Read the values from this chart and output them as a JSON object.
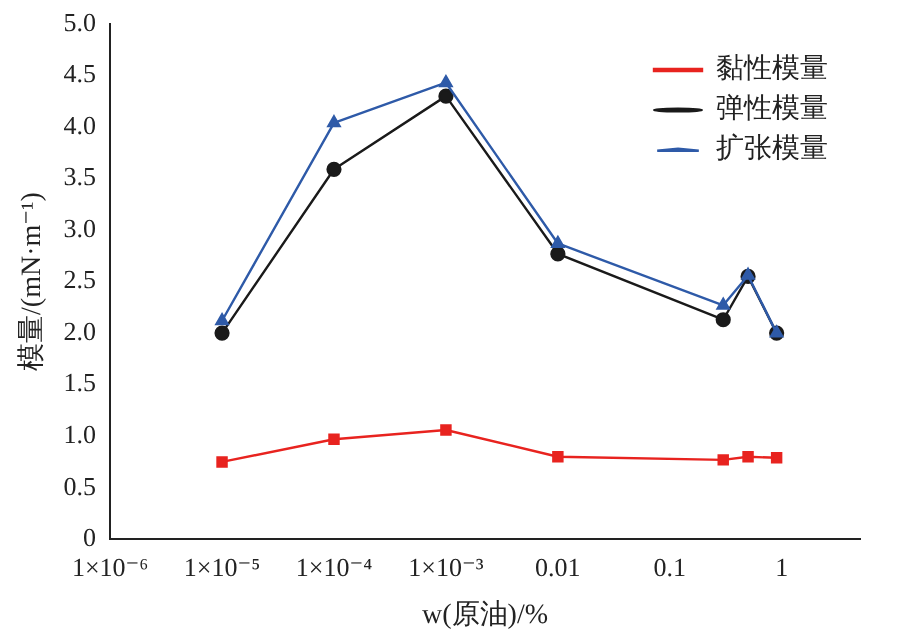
{
  "chart_data": {
    "type": "line",
    "xlabel": "w(原油)/%",
    "ylabel": "模量/(mN·m⁻¹)",
    "log": "x",
    "xlim": [
      1e-06,
      5
    ],
    "xticks": [
      {
        "value": 1e-06,
        "label": "1×10⁻⁶"
      },
      {
        "value": 1e-05,
        "label": "1×10⁻⁵"
      },
      {
        "value": 0.0001,
        "label": "1×10⁻⁴"
      },
      {
        "value": 0.001,
        "label": "1×10⁻³"
      },
      0.01,
      0.1,
      1
    ],
    "ylim": [
      0,
      5
    ],
    "yticks": [
      0,
      {
        "value": 0.5,
        "label": "0.5"
      },
      {
        "value": 1,
        "label": "1.0"
      },
      {
        "value": 1.5,
        "label": "1.5"
      },
      {
        "value": 2,
        "label": "2.0"
      },
      {
        "value": 2.5,
        "label": "2.5"
      },
      {
        "value": 3,
        "label": "3.0"
      },
      {
        "value": 3.5,
        "label": "3.5"
      },
      {
        "value": 4,
        "label": "4.0"
      },
      {
        "value": 4.5,
        "label": "4.5"
      },
      {
        "value": 5,
        "label": "5.0"
      }
    ],
    "x": [
      1e-05,
      0.0001,
      0.001,
      0.01,
      0.3,
      0.5,
      0.9
    ],
    "series": [
      {
        "name": "黏性模量",
        "color": "#e8231f",
        "marker": "square",
        "values": [
          0.75,
          0.97,
          1.06,
          0.8,
          0.77,
          0.8,
          0.79
        ]
      },
      {
        "name": "弹性模量",
        "color": "#1a1a1a",
        "marker": "circle",
        "values": [
          2.0,
          3.59,
          4.3,
          2.77,
          2.13,
          2.55,
          2.0
        ]
      },
      {
        "name": "扩张模量",
        "color": "#2e5aa8",
        "marker": "triangle",
        "values": [
          2.12,
          4.04,
          4.43,
          2.87,
          2.27,
          2.56,
          2.0
        ]
      }
    ],
    "grid": false,
    "legend": "top right",
    "line_style": "solid"
  }
}
